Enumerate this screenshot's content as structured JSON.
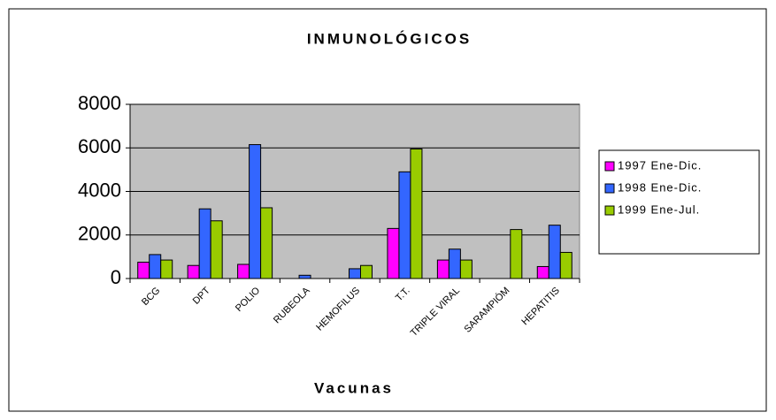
{
  "chart_data": {
    "type": "bar",
    "title": "INMUNOLÓGICOS",
    "x_label": "Vacunas",
    "categories": [
      "BCG",
      "DPT",
      "POLIO",
      "RUBEOLA",
      "HEMOFILUS",
      "T.T.",
      "TRIPLE VIRAL",
      "SARAMPIÓM",
      "HEPATITIS"
    ],
    "series": [
      {
        "name": "1997 Ene-Dic.",
        "color": "#ff00ff",
        "values": [
          750,
          600,
          650,
          0,
          0,
          2300,
          850,
          0,
          550
        ]
      },
      {
        "name": "1998 Ene-Dic.",
        "color": "#3366ff",
        "values": [
          1100,
          3200,
          6150,
          150,
          450,
          4900,
          1350,
          0,
          2450
        ]
      },
      {
        "name": "1999 Ene-Jul.",
        "color": "#99cc00",
        "values": [
          850,
          2650,
          3250,
          0,
          600,
          5950,
          850,
          2250,
          1200
        ]
      }
    ],
    "ylim": [
      0,
      8000
    ],
    "yticks": [
      0,
      2000,
      4000,
      6000,
      8000
    ],
    "grid": true,
    "legend": "right"
  }
}
